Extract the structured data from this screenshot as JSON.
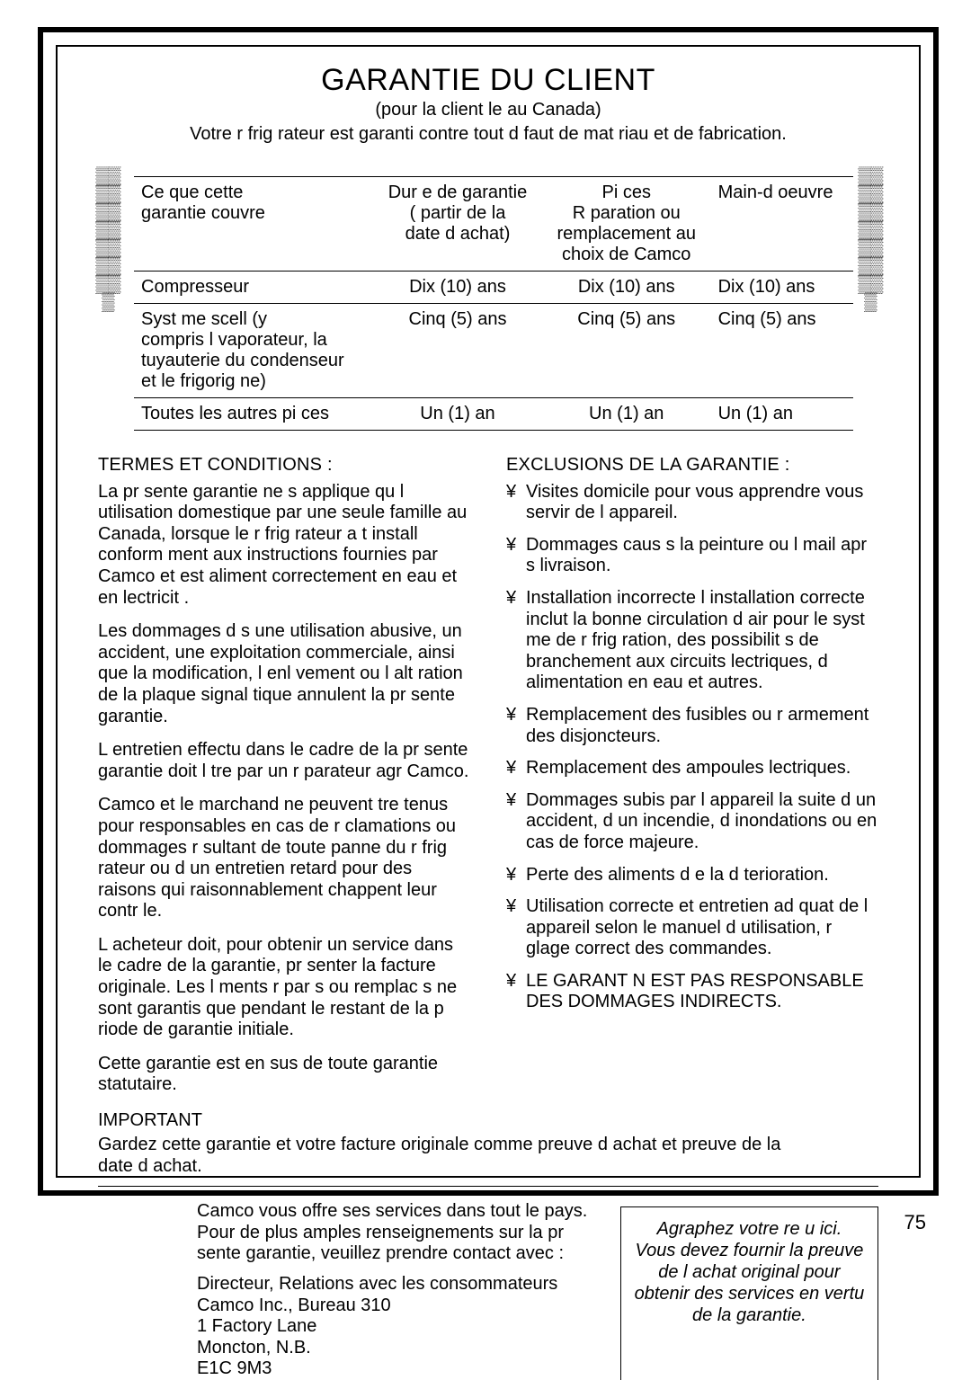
{
  "title": "GARANTIE DU CLIENT",
  "subtitle1": "(pour la client le au Canada)",
  "subtitle2": "Votre r frig rateur est garanti contre tout d faut de mat riau et de fabrication.",
  "table": {
    "headers": [
      "Ce que cette\ngarantie couvre",
      "Dur e de garantie\n(  partir de la\ndate d achat)",
      "Pi ces\nR paration ou\nremplacement au\nchoix de Camco",
      "Main-d oeuvre"
    ],
    "rows": [
      [
        "Compresseur",
        "Dix (10) ans",
        "Dix (10) ans",
        "Dix (10) ans"
      ],
      [
        "Syst me scell  (y\ncompris l  vaporateur, la\ntuyauterie du condenseur\net le frigorig ne)",
        "Cinq (5) ans",
        "Cinq (5) ans",
        "Cinq (5) ans"
      ],
      [
        "Toutes les autres pi ces",
        "Un (1) an",
        "Un (1) an",
        "Un (1) an"
      ]
    ]
  },
  "termsHead": "TERMES ET CONDITIONS :",
  "terms": [
    "La pr sente garantie ne s applique qu   l utilisation domestique par une seule famille au Canada, lorsque le r frig rateur a  t  install  conform ment aux instructions fournies par Camco et est aliment  correctement en eau et en  lectricit .",
    "Les dommages d s   une utilisation abusive, un accident, une exploitation commerciale, ainsi que la modification, l enl vement ou l alt ration de la plaque signal tique annulent la pr sente garantie.",
    "L entretien effectu  dans le cadre de la pr sente garantie doit l  tre par un r parateur agr   Camco.",
    "Camco et le marchand ne peuvent  tre tenus pour responsables en cas de r clamations ou dommages r sultant de toute panne du r frig rateur ou d un entretien retard  pour des raisons qui raisonnablement  chappent   leur contr le.",
    "L acheteur doit, pour obtenir un service dans le cadre de la garantie, pr senter la facture originale. Les  l ments r par s ou remplac s ne sont garantis que pendant le restant de la p riode de garantie initiale.",
    "Cette garantie est en sus de toute garantie statutaire."
  ],
  "exclHead": "EXCLUSIONS DE LA GARANTIE :",
  "bullet": "¥",
  "exclusions": [
    "Visites   domicile pour vous apprendre   vous servir de l appareil.",
    "Dommages caus s   la peinture ou l  mail apr s livraison.",
    "Installation incorrecte l installation correcte inclut la bonne circulation d air pour le syst me de r frig ration, des possibilit s de branchement aux circuits  lectriques, d alimentation en eau et autres.",
    "Remplacement des fusibles ou r armement des disjoncteurs.",
    "Remplacement des ampoules  lectriques.",
    "Dommages subis par l appareil   la suite d un accident, d un incendie, d inondations ou en cas de force majeure.",
    "Perte des aliments d e   la d terioration.",
    "Utilisation correcte et entretien ad quat de l appareil selon le manuel d utilisation, r glage correct des commandes.",
    "LE GARANT N EST PAS RESPONSABLE DES DOMMAGES INDIRECTS."
  ],
  "importantHead": "IMPORTANT",
  "importantPara": "Gardez cette garantie et votre facture originale comme preuve d achat et preuve de la date d achat.",
  "bottomPara": "Camco vous offre ses services dans tout le pays. Pour de plus amples renseignements sur la pr sente garantie, veuillez prendre contact avec :",
  "address": "Directeur, Relations avec les consommateurs\nCamco Inc., Bureau 310\n1 Factory Lane\nMoncton, N.B.\nE1C 9M3",
  "receiptBox": "Agraphez votre re u ici.\nVous devez fournir la preuve de l achat original pour obtenir des services en vertu de la garantie.",
  "pageNum": "75",
  "ornGlyph": "▒"
}
